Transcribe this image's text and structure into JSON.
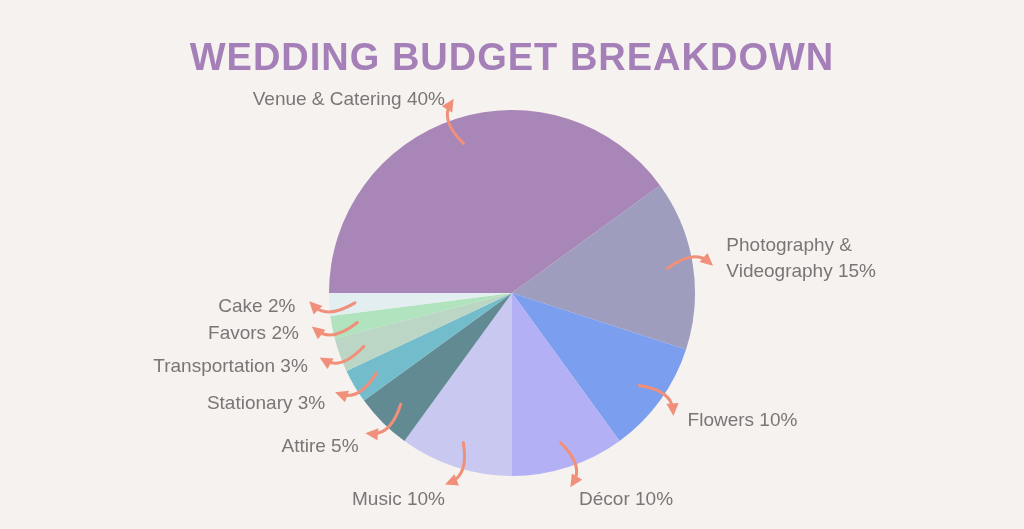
{
  "chart_data": {
    "type": "pie",
    "title": "WEDDING BUDGET BREAKDOWN",
    "categories": [
      "Venue & Catering",
      "Photography & Videography",
      "Flowers",
      "Décor",
      "Music",
      "Attire",
      "Stationary",
      "Transportation",
      "Favors",
      "Cake"
    ],
    "values": [
      40,
      15,
      10,
      10,
      10,
      5,
      3,
      3,
      2,
      2
    ],
    "value_labels": [
      "40%",
      "15%",
      "10%",
      "10%",
      "10%",
      "5%",
      "3%",
      "3%",
      "2%",
      "2%"
    ],
    "colors": [
      "#a886b8",
      "#9f9dbe",
      "#7b9fee",
      "#b3b0f5",
      "#c8c8f0",
      "#618a93",
      "#72bccc",
      "#bcd6c6",
      "#b0e3be",
      "#e3eef0"
    ],
    "legend": false
  }
}
